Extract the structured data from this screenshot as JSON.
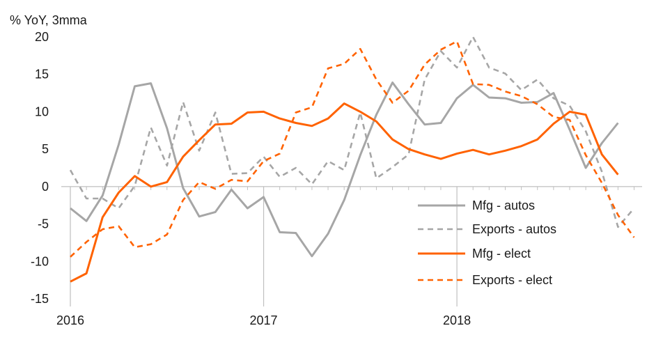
{
  "chart_data": {
    "type": "line",
    "unit_label": "% YoY, 3mma",
    "title": "",
    "xlabel": "",
    "ylabel": "",
    "ylim": [
      -15,
      20
    ],
    "yticks": [
      20,
      15,
      10,
      5,
      0,
      -5,
      -10,
      -15
    ],
    "x_start": "2016-01",
    "x_ticks": [
      {
        "label": "2016",
        "x": "2016-01"
      },
      {
        "label": "2017",
        "x": "2017-01"
      },
      {
        "label": "2018",
        "x": "2018-01"
      }
    ],
    "x": [
      "2016-01",
      "2016-02",
      "2016-03",
      "2016-04",
      "2016-05",
      "2016-06",
      "2016-07",
      "2016-08",
      "2016-09",
      "2016-10",
      "2016-11",
      "2016-12",
      "2017-01",
      "2017-02",
      "2017-03",
      "2017-04",
      "2017-05",
      "2017-06",
      "2017-07",
      "2017-08",
      "2017-09",
      "2017-10",
      "2017-11",
      "2017-12",
      "2018-01",
      "2018-02",
      "2018-03",
      "2018-04",
      "2018-05",
      "2018-06",
      "2018-07",
      "2018-08",
      "2018-09",
      "2018-10",
      "2018-11",
      "2018-12"
    ],
    "grid": false,
    "legend_position": "bottom-right",
    "series": [
      {
        "name": "Mfg - autos",
        "color": "#a6a6a6",
        "style": "solid",
        "values": [
          -2.9,
          -4.6,
          -1.2,
          5.6,
          13.4,
          13.8,
          7.8,
          -0.2,
          -4.0,
          -3.4,
          -0.4,
          -2.9,
          -1.4,
          -6.1,
          -6.2,
          -9.3,
          -6.3,
          -1.8,
          4.2,
          9.6,
          13.9,
          11.0,
          8.3,
          8.5,
          11.8,
          13.6,
          11.9,
          11.8,
          11.2,
          11.3,
          12.5,
          7.6,
          2.5,
          5.8,
          8.5,
          null
        ]
      },
      {
        "name": "Exports - autos",
        "color": "#a6a6a6",
        "style": "dashed",
        "values": [
          2.2,
          -1.6,
          -1.6,
          -2.9,
          0.1,
          7.9,
          2.8,
          11.3,
          4.8,
          9.9,
          1.7,
          1.8,
          4.0,
          1.3,
          2.5,
          0.3,
          3.4,
          2.2,
          9.9,
          1.1,
          2.6,
          4.3,
          14.3,
          18.1,
          15.9,
          20.0,
          15.9,
          15.1,
          12.9,
          14.3,
          11.8,
          10.8,
          7.4,
          2.0,
          -5.4,
          -2.9
        ]
      },
      {
        "name": "Mfg - elect",
        "color": "#ff6200",
        "style": "solid",
        "values": [
          -12.7,
          -11.6,
          -4.1,
          -0.8,
          1.4,
          0.0,
          0.6,
          4.0,
          6.2,
          8.3,
          8.4,
          9.9,
          10.0,
          9.1,
          8.5,
          8.1,
          9.1,
          11.1,
          10.0,
          8.7,
          6.3,
          5.0,
          4.3,
          3.7,
          4.4,
          4.9,
          4.3,
          4.8,
          5.4,
          6.3,
          8.4,
          10.0,
          9.6,
          4.3,
          1.6,
          null
        ]
      },
      {
        "name": "Exports - elect",
        "color": "#ff6200",
        "style": "dashed",
        "values": [
          -9.4,
          -7.4,
          -5.7,
          -5.3,
          -8.1,
          -7.7,
          -6.4,
          -1.8,
          0.6,
          -0.3,
          0.9,
          0.7,
          3.4,
          4.4,
          9.9,
          10.6,
          15.8,
          16.4,
          18.4,
          14.3,
          11.2,
          12.8,
          16.3,
          18.3,
          19.4,
          13.7,
          13.6,
          12.7,
          12.1,
          11.0,
          9.3,
          8.9,
          4.2,
          0.5,
          -3.8,
          -6.8
        ]
      }
    ]
  }
}
